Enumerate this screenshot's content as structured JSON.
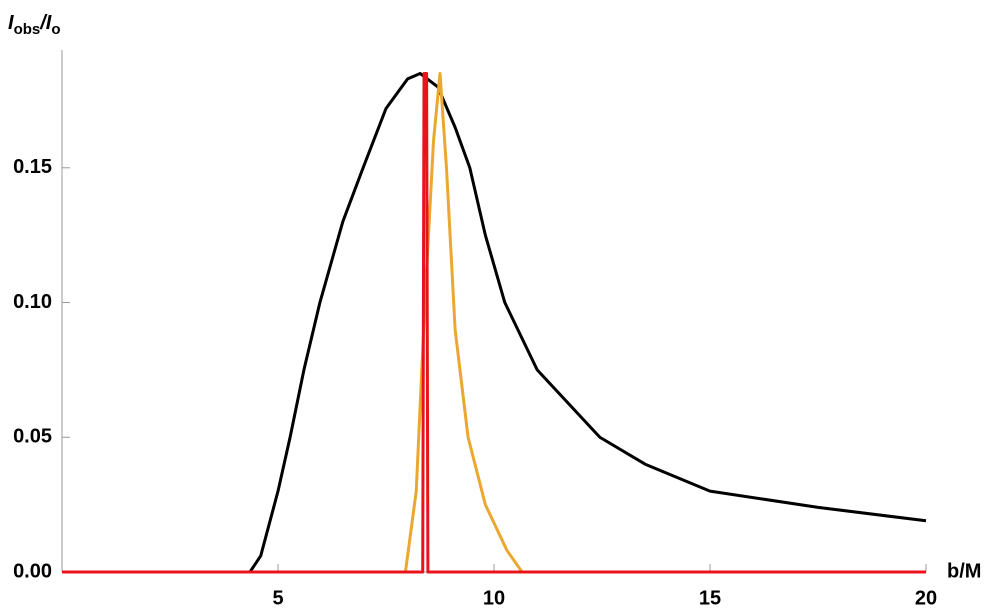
{
  "chart_data": {
    "type": "line",
    "ylabel": [
      {
        "text": "I"
      },
      {
        "text": "obs",
        "sub": true
      },
      {
        "text": "/I"
      },
      {
        "text": "o",
        "sub": true
      }
    ],
    "xlabel": "b/M",
    "xlim": [
      0,
      20
    ],
    "ylim": [
      0,
      0.19
    ],
    "xticks": [
      5,
      10,
      15,
      20
    ],
    "yticks": [
      {
        "value": 0,
        "label": "0.00"
      },
      {
        "value": 0.05,
        "label": "0.05"
      },
      {
        "value": 0.1,
        "label": "0.10"
      },
      {
        "value": 0.15,
        "label": "0.15"
      }
    ],
    "grid": false,
    "series": [
      {
        "color": "#000000",
        "x": [
          0,
          4.35,
          4.6,
          5,
          5.28,
          5.6,
          5.97,
          6.5,
          6.97,
          7.5,
          8,
          8.29,
          8.7,
          9.1,
          9.44,
          9.8,
          10.25,
          11,
          12.45,
          13.5,
          15,
          17.5,
          20
        ],
        "values": [
          0,
          0,
          0.006,
          0.03,
          0.05,
          0.075,
          0.1,
          0.13,
          0.15,
          0.172,
          0.183,
          0.185,
          0.18,
          0.165,
          0.15,
          0.125,
          0.1,
          0.075,
          0.05,
          0.04,
          0.03,
          0.024,
          0.019
        ]
      },
      {
        "color": "#eba72f",
        "x": [
          0,
          7.95,
          8.2,
          8.4,
          8.6,
          8.75,
          8.9,
          9.1,
          9.4,
          9.8,
          10.3,
          10.65,
          20
        ],
        "values": [
          0,
          0,
          0.03,
          0.1,
          0.16,
          0.185,
          0.15,
          0.09,
          0.05,
          0.025,
          0.008,
          0,
          0
        ]
      },
      {
        "color": "#e8141c",
        "x": [
          0,
          8.35,
          8.38,
          8.44,
          8.47,
          20
        ],
        "values": [
          0,
          0,
          0.185,
          0.185,
          0,
          0
        ]
      }
    ]
  }
}
